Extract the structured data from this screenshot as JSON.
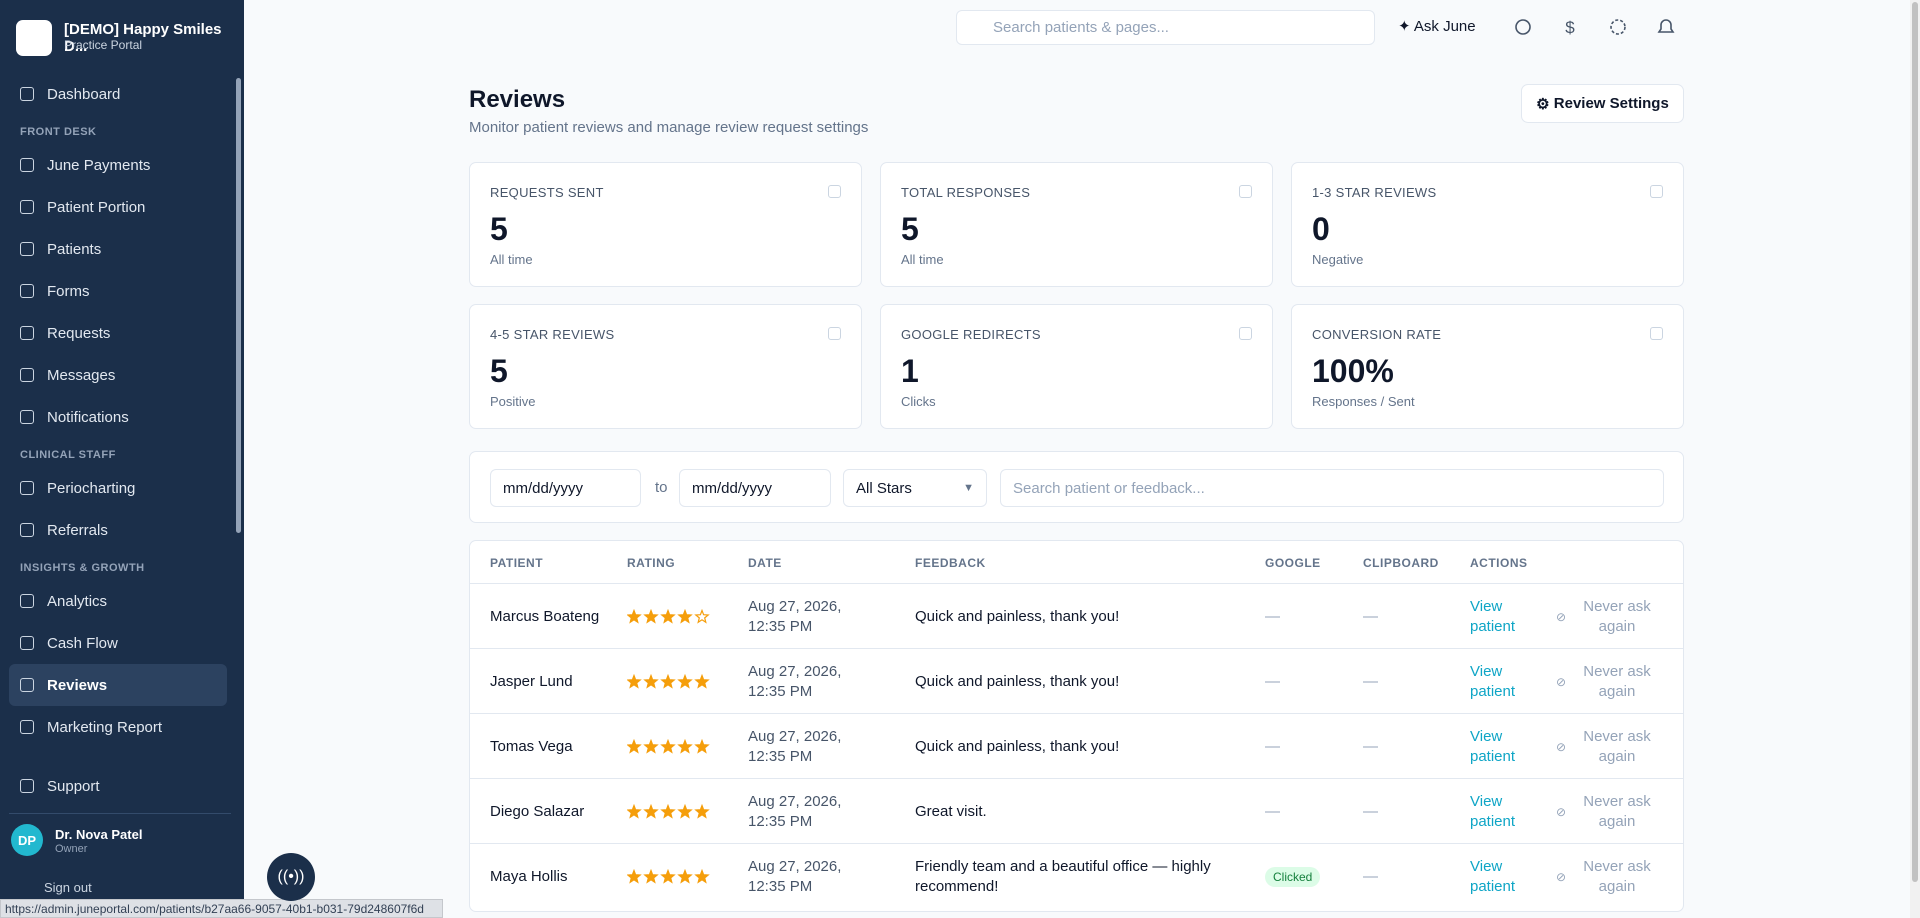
{
  "sidebar": {
    "practice_name": "[DEMO] Happy Smiles D...",
    "practice_subtitle": "Practice Portal",
    "nav": [
      {
        "label": "Dashboard"
      },
      {
        "section": "FRONT DESK"
      },
      {
        "label": "June Payments"
      },
      {
        "label": "Patient Portion"
      },
      {
        "label": "Patients"
      },
      {
        "label": "Forms"
      },
      {
        "label": "Requests"
      },
      {
        "label": "Messages"
      },
      {
        "label": "Notifications"
      },
      {
        "section": "CLINICAL STAFF"
      },
      {
        "label": "Periocharting"
      },
      {
        "label": "Referrals"
      },
      {
        "section": "INSIGHTS & GROWTH"
      },
      {
        "label": "Analytics"
      },
      {
        "label": "Cash Flow"
      },
      {
        "label": "Reviews",
        "active": true
      },
      {
        "label": "Marketing Report"
      }
    ],
    "support": "Support",
    "user": {
      "initials": "DP",
      "name": "Dr. Nova Patel",
      "role": "Owner"
    },
    "sign_out": "Sign out"
  },
  "topbar": {
    "search_placeholder": "Search patients & pages...",
    "ask": "Ask June"
  },
  "header": {
    "title": "Reviews",
    "subtitle": "Monitor patient reviews and manage review request settings",
    "button": "Review Settings"
  },
  "stats": [
    {
      "label": "REQUESTS SENT",
      "value": "5",
      "note": "All time"
    },
    {
      "label": "TOTAL RESPONSES",
      "value": "5",
      "note": "All time"
    },
    {
      "label": "1-3 STAR REVIEWS",
      "value": "0",
      "note": "Negative"
    },
    {
      "label": "4-5 STAR REVIEWS",
      "value": "5",
      "note": "Positive"
    },
    {
      "label": "GOOGLE REDIRECTS",
      "value": "1",
      "note": "Clicks"
    },
    {
      "label": "CONVERSION RATE",
      "value": "100%",
      "note": "Responses / Sent"
    }
  ],
  "filters": {
    "date_placeholder": "mm/dd/yyyy",
    "to": "to",
    "stars": "All Stars",
    "search_placeholder": "Search patient or feedback..."
  },
  "table": {
    "columns": [
      "PATIENT",
      "RATING",
      "DATE",
      "FEEDBACK",
      "GOOGLE",
      "CLIPBOARD",
      "ACTIONS"
    ],
    "rows": [
      {
        "patient": "Marcus Boateng",
        "rating": 4,
        "date": "Aug 27, 2026, 12:35 PM",
        "feedback": "Quick and painless, thank you!",
        "google": "—",
        "clipboard": "—",
        "action": "View patient",
        "never": "Never ask again"
      },
      {
        "patient": "Jasper Lund",
        "rating": 5,
        "date": "Aug 27, 2026, 12:35 PM",
        "feedback": "Quick and painless, thank you!",
        "google": "—",
        "clipboard": "—",
        "action": "View patient",
        "never": "Never ask again"
      },
      {
        "patient": "Tomas Vega",
        "rating": 5,
        "date": "Aug 27, 2026, 12:35 PM",
        "feedback": "Quick and painless, thank you!",
        "google": "—",
        "clipboard": "—",
        "action": "View patient",
        "never": "Never ask again"
      },
      {
        "patient": "Diego Salazar",
        "rating": 5,
        "date": "Aug 27, 2026, 12:35 PM",
        "feedback": "Great visit.",
        "google": "—",
        "clipboard": "—",
        "action": "View patient",
        "never": "Never ask again"
      },
      {
        "patient": "Maya Hollis",
        "rating": 5,
        "date": "Aug 27, 2026, 12:35 PM",
        "feedback": "Friendly team and a beautiful office — highly recommend!",
        "google": "Clicked",
        "clipboard": "—",
        "action": "View patient",
        "never": "Never ask again"
      }
    ]
  },
  "status_url": "https://admin.juneportal.com/patients/b27aa66-9057-40b1-b031-79d248607f6d"
}
